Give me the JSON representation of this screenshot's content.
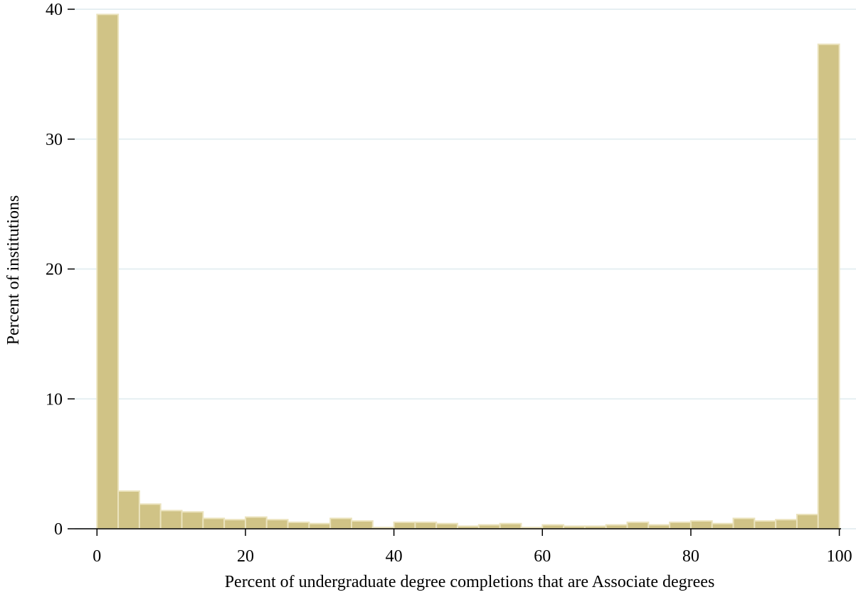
{
  "chart_data": {
    "type": "histogram",
    "x_label": "Percent of undergraduate degree completions that are Associate degrees",
    "y_label": "Percent of institutions",
    "bins": [
      0,
      2.857,
      5.714,
      8.571,
      11.429,
      14.286,
      17.143,
      20,
      22.857,
      25.714,
      28.571,
      31.429,
      34.286,
      37.143,
      40,
      42.857,
      45.714,
      48.571,
      51.429,
      54.286,
      57.143,
      60,
      62.857,
      65.714,
      68.571,
      71.429,
      74.286,
      77.143,
      80,
      82.857,
      85.714,
      88.571,
      91.429,
      94.286,
      97.143,
      100
    ],
    "values": [
      39.6,
      2.9,
      1.9,
      1.4,
      1.3,
      0.8,
      0.7,
      0.9,
      0.7,
      0.5,
      0.4,
      0.8,
      0.6,
      0.1,
      0.5,
      0.5,
      0.4,
      0.2,
      0.3,
      0.4,
      0.1,
      0.3,
      0.2,
      0.2,
      0.3,
      0.5,
      0.3,
      0.5,
      0.6,
      0.4,
      0.8,
      0.6,
      0.7,
      1.1,
      37.3
    ],
    "color": "#d0c386",
    "xlim": [
      -3,
      101
    ],
    "xticks": [
      0,
      20,
      40,
      60,
      80,
      100
    ],
    "ylim": [
      0,
      40
    ],
    "yticks": [
      0,
      10,
      20,
      30,
      40
    ],
    "grid": true
  }
}
